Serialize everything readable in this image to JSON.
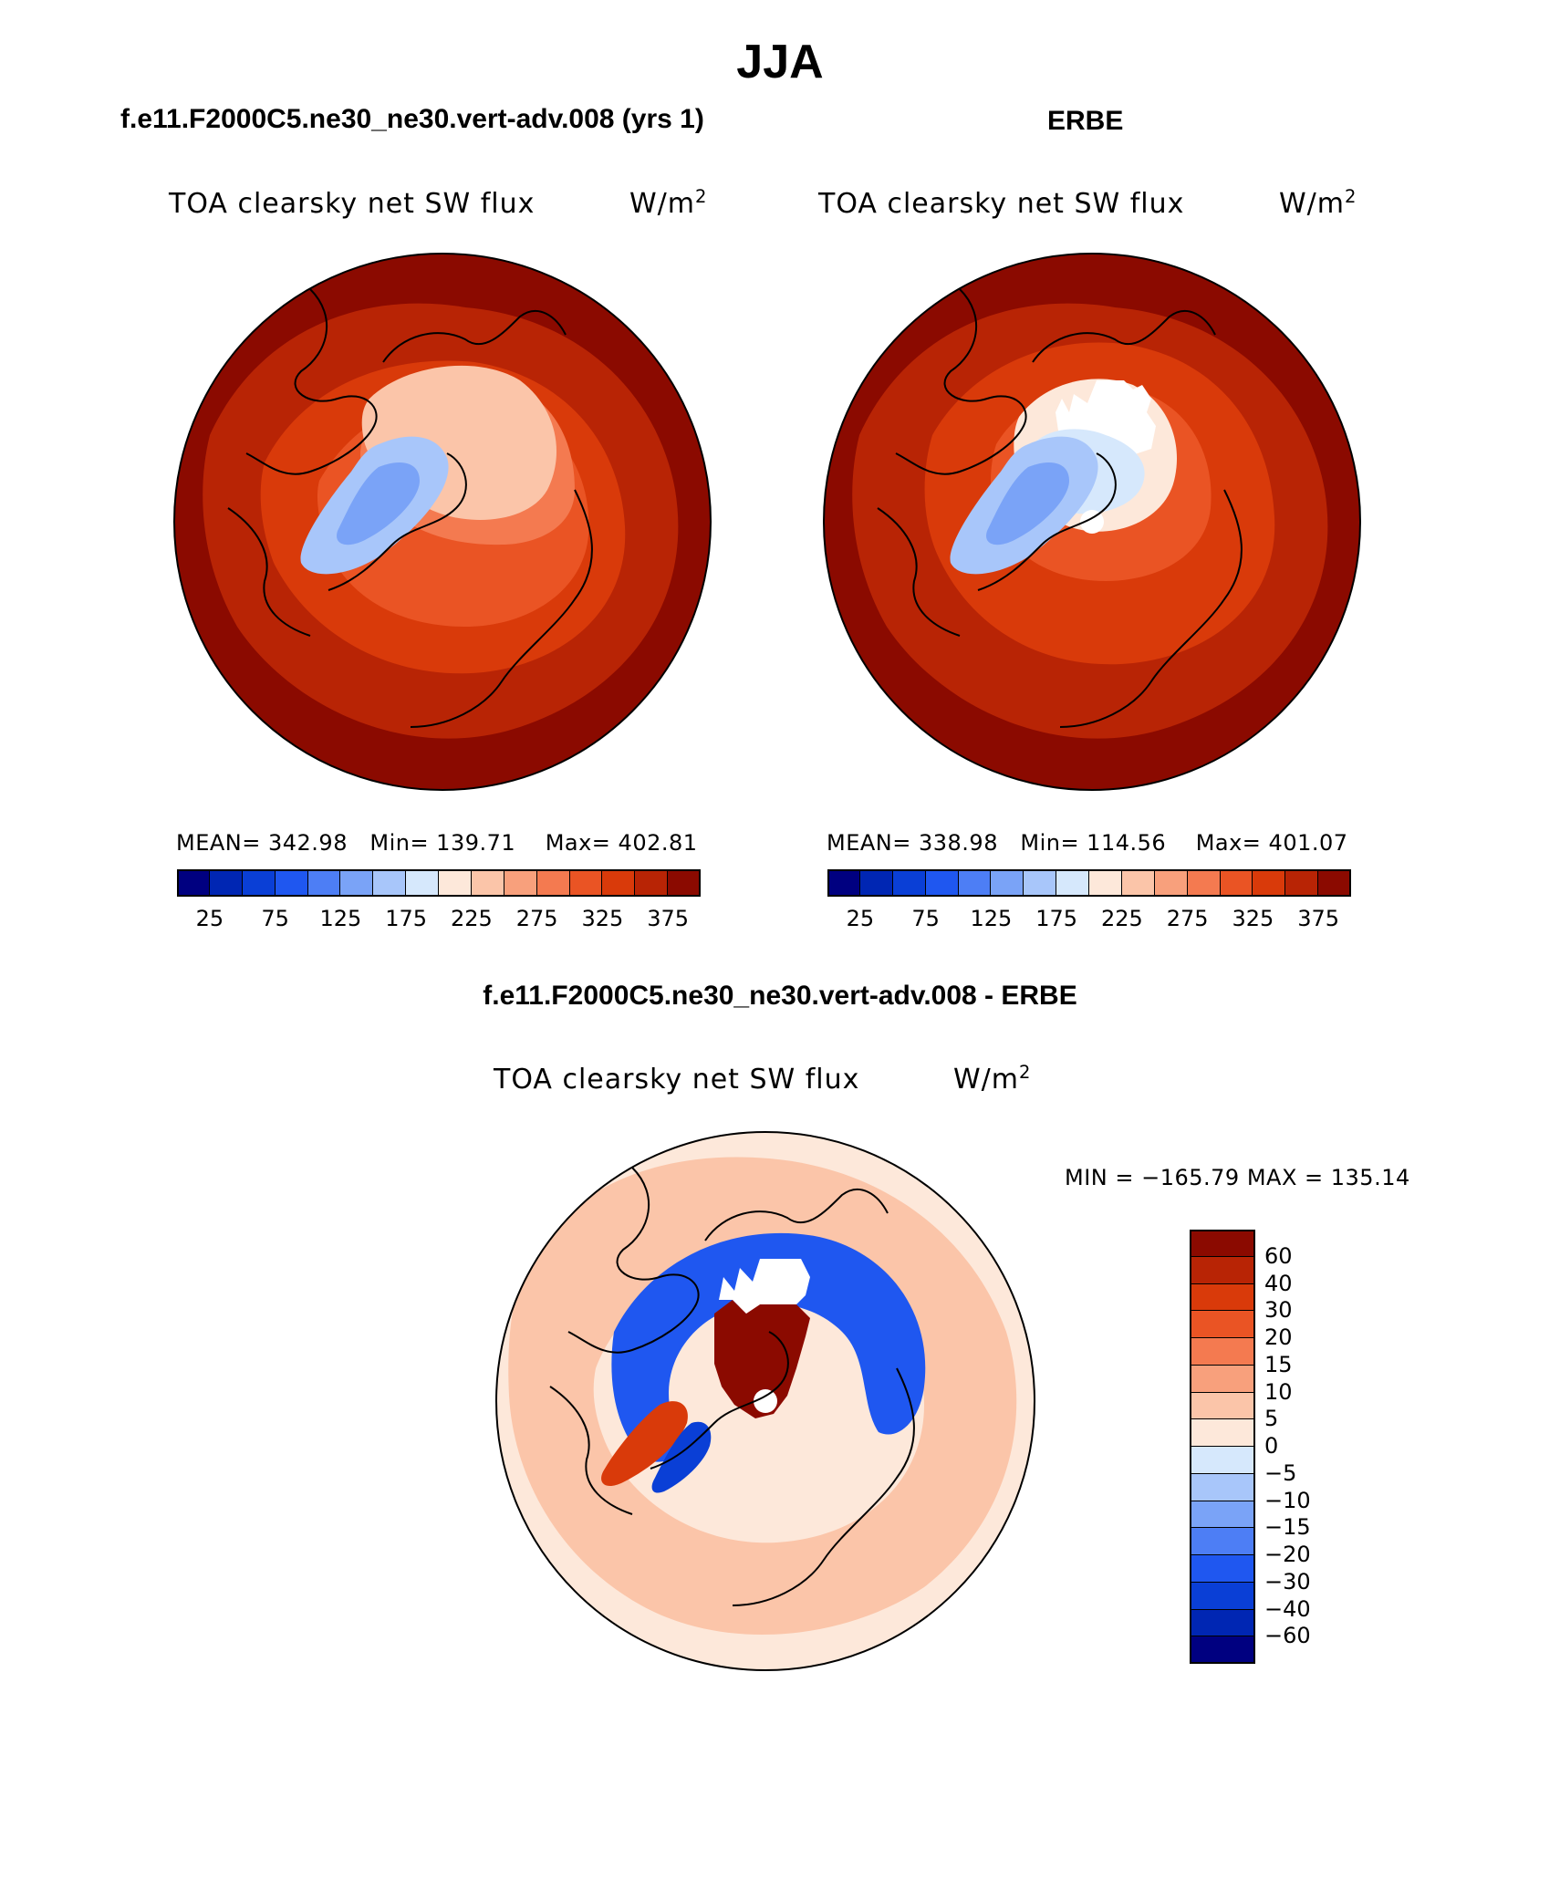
{
  "figure": {
    "season": "JJA",
    "left_title": "f.e11.F2000C5.ne30_ne30.vert-adv.008 (yrs 1)",
    "right_title": "ERBE",
    "diff_title": "f.e11.F2000C5.ne30_ne30.vert-adv.008 - ERBE"
  },
  "panels": [
    {
      "variable": "TOA clearsky net SW flux",
      "units_base": "W/m",
      "units_exp": "2",
      "mean_label": "MEAN= 342.98",
      "min_label": "Min= 139.71",
      "max_label": "Max= 402.81"
    },
    {
      "variable": "TOA clearsky net SW flux",
      "units_base": "W/m",
      "units_exp": "2",
      "mean_label": "MEAN= 338.98",
      "min_label": "Min= 114.56",
      "max_label": "Max= 401.07"
    }
  ],
  "diff_panel": {
    "variable": "TOA clearsky net SW flux",
    "units_base": "W/m",
    "units_exp": "2",
    "minmax_label": "MIN = −165.79  MAX = 135.14"
  },
  "colors": {
    "abs_scale": [
      "#000080",
      "#0026b3",
      "#0a3fd6",
      "#1f57f0",
      "#4d7ef5",
      "#7aa3f7",
      "#a8c6fa",
      "#d6e8fc",
      "#fde8da",
      "#fbc5a9",
      "#f8a07c",
      "#f47a50",
      "#ea5424",
      "#d93a0a",
      "#b82405",
      "#8b0a00"
    ],
    "diff_scale": [
      "#8b0a00",
      "#b82405",
      "#d93a0a",
      "#ea5424",
      "#f47a50",
      "#f8a07c",
      "#fbc5a9",
      "#fde8da",
      "#d6e8fc",
      "#a8c6fa",
      "#7aa3f7",
      "#4d7ef5",
      "#1f57f0",
      "#0a3fd6",
      "#0026b3",
      "#000080"
    ]
  },
  "chart_data": [
    {
      "type": "heatmap",
      "title": "f.e11.F2000C5.ne30_ne30.vert-adv.008 (yrs 1)",
      "variable": "TOA clearsky net SW flux",
      "units": "W/m2",
      "projection": "north polar stereographic",
      "mean": 342.98,
      "min": 139.71,
      "max": 402.81,
      "colorbar_ticks": [
        "25",
        "75",
        "125",
        "175",
        "225",
        "275",
        "325",
        "375"
      ]
    },
    {
      "type": "heatmap",
      "title": "ERBE",
      "variable": "TOA clearsky net SW flux",
      "units": "W/m2",
      "projection": "north polar stereographic",
      "mean": 338.98,
      "min": 114.56,
      "max": 401.07,
      "colorbar_ticks": [
        "25",
        "75",
        "125",
        "175",
        "225",
        "275",
        "325",
        "375"
      ]
    },
    {
      "type": "heatmap",
      "title": "f.e11.F2000C5.ne30_ne30.vert-adv.008 - ERBE",
      "variable": "TOA clearsky net SW flux",
      "units": "W/m2",
      "projection": "north polar stereographic",
      "min": -165.79,
      "max": 135.14,
      "colorbar_ticks": [
        "60",
        "40",
        "30",
        "20",
        "15",
        "10",
        "5",
        "0",
        "−5",
        "−10",
        "−15",
        "−20",
        "−30",
        "−40",
        "−60"
      ]
    }
  ]
}
